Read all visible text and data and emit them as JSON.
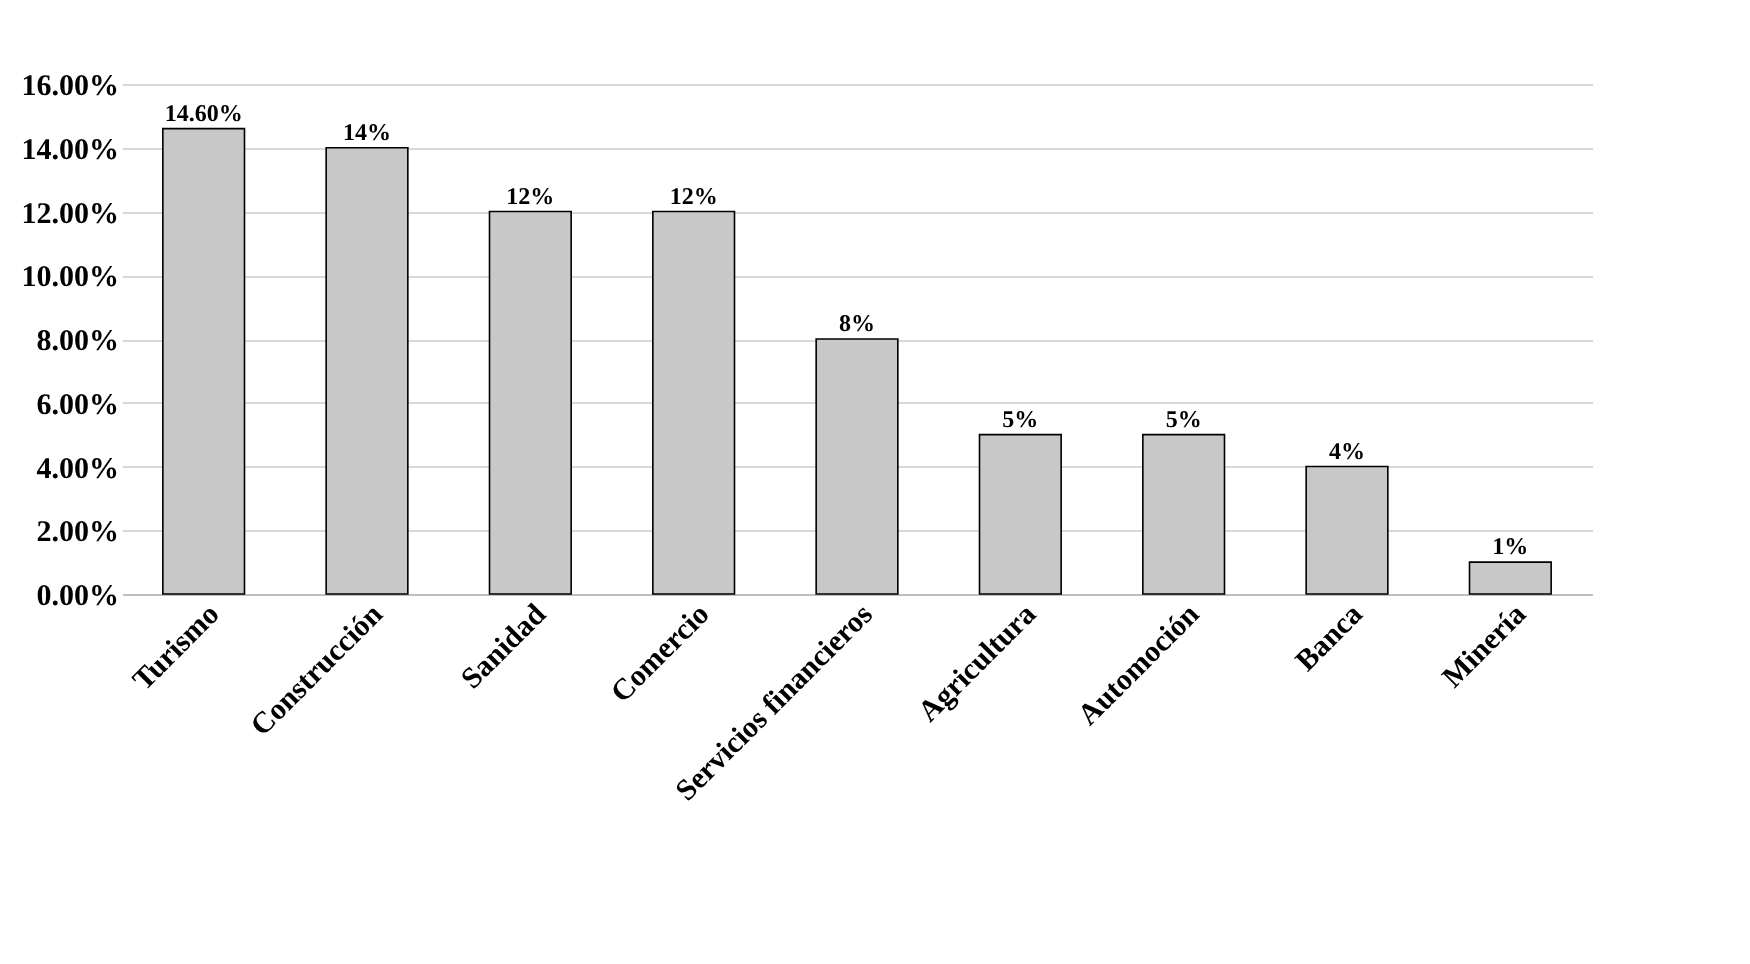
{
  "chart_data": {
    "type": "bar",
    "categories": [
      "Turismo",
      "Construcción",
      "Sanidad",
      "Comercio",
      "Servicios financieros",
      "Agricultura",
      "Automoción",
      "Banca",
      "Minería"
    ],
    "values": [
      14.6,
      14,
      12,
      12,
      8,
      5,
      5,
      4,
      1
    ],
    "value_labels": [
      "14.60%",
      "14%",
      "12%",
      "12%",
      "8%",
      "5%",
      "5%",
      "4%",
      "1%"
    ],
    "color": "#c8c8c8",
    "ylim": [
      0,
      16
    ],
    "yticks": [
      {
        "value": 0,
        "label": "0.00%"
      },
      {
        "value": 2,
        "label": "2.00%"
      },
      {
        "value": 4,
        "label": "4.00%"
      },
      {
        "value": 6,
        "label": "6.00%"
      },
      {
        "value": 8,
        "label": "8.00%"
      },
      {
        "value": 10,
        "label": "10.00%"
      },
      {
        "value": 12,
        "label": "12.00%"
      },
      {
        "value": 14,
        "label": "14.00%"
      },
      {
        "value": 16,
        "label": "16.00%"
      }
    ],
    "grid": "y"
  }
}
